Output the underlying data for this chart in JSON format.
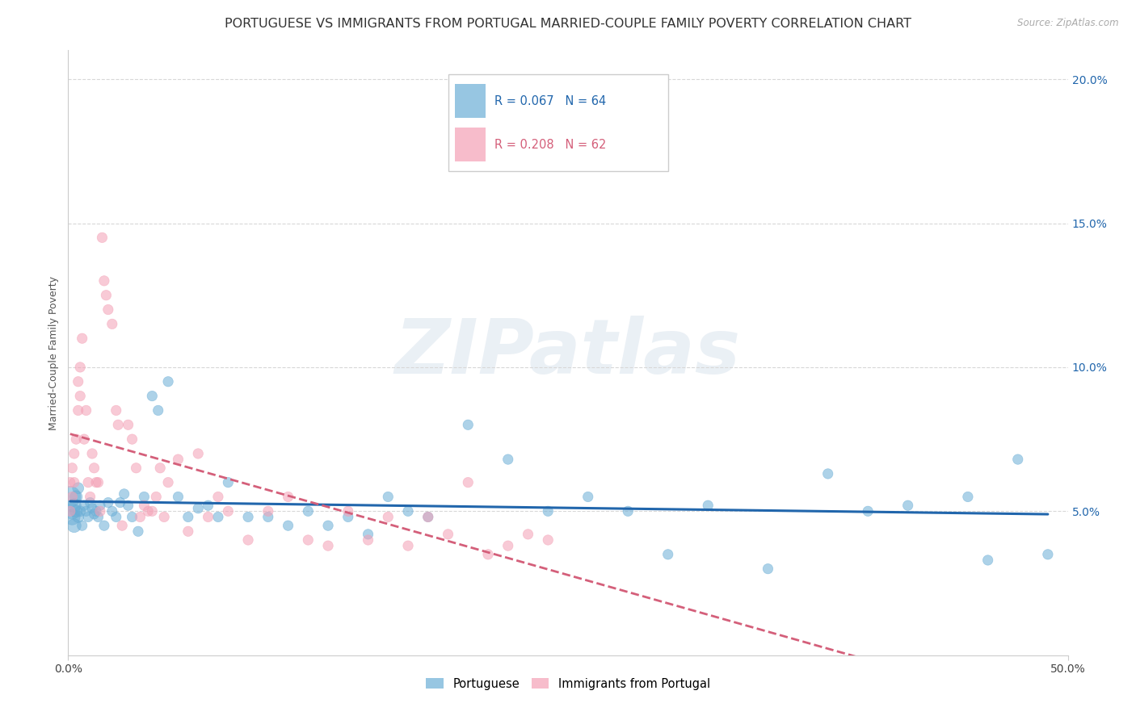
{
  "title": "PORTUGUESE VS IMMIGRANTS FROM PORTUGAL MARRIED-COUPLE FAMILY POVERTY CORRELATION CHART",
  "source": "Source: ZipAtlas.com",
  "ylabel": "Married-Couple Family Poverty",
  "legend_label1": "Portuguese",
  "legend_label2": "Immigrants from Portugal",
  "color_blue": "#6baed6",
  "color_pink": "#f4a0b5",
  "color_blue_line": "#2166ac",
  "color_pink_line": "#d45f7a",
  "watermark_text": "ZIPatlas",
  "blue_R": "0.067",
  "blue_N": "64",
  "pink_R": "0.208",
  "pink_N": "62",
  "blue_points_x": [
    0.001,
    0.002,
    0.002,
    0.003,
    0.003,
    0.004,
    0.004,
    0.005,
    0.005,
    0.006,
    0.007,
    0.008,
    0.009,
    0.01,
    0.011,
    0.012,
    0.013,
    0.014,
    0.015,
    0.016,
    0.018,
    0.02,
    0.022,
    0.024,
    0.026,
    0.028,
    0.03,
    0.032,
    0.035,
    0.038,
    0.042,
    0.045,
    0.05,
    0.055,
    0.06,
    0.065,
    0.07,
    0.075,
    0.08,
    0.09,
    0.1,
    0.11,
    0.12,
    0.13,
    0.14,
    0.15,
    0.16,
    0.17,
    0.18,
    0.2,
    0.22,
    0.24,
    0.26,
    0.28,
    0.3,
    0.32,
    0.35,
    0.38,
    0.4,
    0.42,
    0.45,
    0.46,
    0.475,
    0.49
  ],
  "blue_points_y": [
    0.055,
    0.05,
    0.048,
    0.052,
    0.045,
    0.05,
    0.055,
    0.048,
    0.058,
    0.05,
    0.045,
    0.052,
    0.05,
    0.048,
    0.053,
    0.051,
    0.049,
    0.05,
    0.048,
    0.052,
    0.045,
    0.053,
    0.05,
    0.048,
    0.053,
    0.056,
    0.052,
    0.048,
    0.043,
    0.055,
    0.09,
    0.085,
    0.095,
    0.055,
    0.048,
    0.051,
    0.052,
    0.048,
    0.06,
    0.048,
    0.048,
    0.045,
    0.05,
    0.045,
    0.048,
    0.042,
    0.055,
    0.05,
    0.048,
    0.08,
    0.068,
    0.05,
    0.055,
    0.05,
    0.035,
    0.052,
    0.03,
    0.063,
    0.05,
    0.052,
    0.055,
    0.033,
    0.068,
    0.035
  ],
  "blue_sizes": [
    350,
    200,
    200,
    150,
    150,
    120,
    120,
    100,
    100,
    90,
    80,
    80,
    80,
    80,
    80,
    80,
    80,
    80,
    80,
    80,
    80,
    80,
    80,
    80,
    80,
    80,
    80,
    80,
    80,
    80,
    80,
    80,
    80,
    80,
    80,
    80,
    80,
    80,
    80,
    80,
    80,
    80,
    80,
    80,
    80,
    80,
    80,
    80,
    80,
    80,
    80,
    80,
    80,
    80,
    80,
    80,
    80,
    80,
    80,
    80,
    80,
    80,
    80,
    80
  ],
  "pink_points_x": [
    0.001,
    0.001,
    0.002,
    0.002,
    0.003,
    0.003,
    0.004,
    0.005,
    0.005,
    0.006,
    0.006,
    0.007,
    0.008,
    0.009,
    0.01,
    0.011,
    0.012,
    0.013,
    0.014,
    0.015,
    0.016,
    0.017,
    0.018,
    0.019,
    0.02,
    0.022,
    0.024,
    0.025,
    0.027,
    0.03,
    0.032,
    0.034,
    0.036,
    0.038,
    0.04,
    0.042,
    0.044,
    0.046,
    0.048,
    0.05,
    0.055,
    0.06,
    0.065,
    0.07,
    0.075,
    0.08,
    0.09,
    0.1,
    0.11,
    0.12,
    0.13,
    0.14,
    0.15,
    0.16,
    0.17,
    0.18,
    0.19,
    0.2,
    0.21,
    0.22,
    0.23,
    0.24
  ],
  "pink_points_y": [
    0.05,
    0.06,
    0.055,
    0.065,
    0.07,
    0.06,
    0.075,
    0.095,
    0.085,
    0.09,
    0.1,
    0.11,
    0.075,
    0.085,
    0.06,
    0.055,
    0.07,
    0.065,
    0.06,
    0.06,
    0.05,
    0.145,
    0.13,
    0.125,
    0.12,
    0.115,
    0.085,
    0.08,
    0.045,
    0.08,
    0.075,
    0.065,
    0.048,
    0.052,
    0.05,
    0.05,
    0.055,
    0.065,
    0.048,
    0.06,
    0.068,
    0.043,
    0.07,
    0.048,
    0.055,
    0.05,
    0.04,
    0.05,
    0.055,
    0.04,
    0.038,
    0.05,
    0.04,
    0.048,
    0.038,
    0.048,
    0.042,
    0.06,
    0.035,
    0.038,
    0.042,
    0.04
  ],
  "pink_sizes": [
    80,
    80,
    80,
    80,
    80,
    80,
    80,
    80,
    80,
    80,
    80,
    80,
    80,
    80,
    80,
    80,
    80,
    80,
    80,
    80,
    80,
    80,
    80,
    80,
    80,
    80,
    80,
    80,
    80,
    80,
    80,
    80,
    80,
    80,
    80,
    80,
    80,
    80,
    80,
    80,
    80,
    80,
    80,
    80,
    80,
    80,
    80,
    80,
    80,
    80,
    80,
    80,
    80,
    80,
    80,
    80,
    80,
    80,
    80,
    80,
    80,
    80
  ],
  "xlim": [
    0.0,
    0.5
  ],
  "ylim": [
    0.0,
    0.21
  ],
  "ytick_vals": [
    0.05,
    0.1,
    0.15,
    0.2
  ],
  "ytick_labels": [
    "5.0%",
    "10.0%",
    "15.0%",
    "20.0%"
  ],
  "xtick_vals": [
    0.0,
    0.5
  ],
  "xtick_labels": [
    "0.0%",
    "50.0%"
  ],
  "grid_color": "#d8d8d8",
  "title_fontsize": 11.5,
  "axis_label_fontsize": 9,
  "tick_fontsize": 10
}
